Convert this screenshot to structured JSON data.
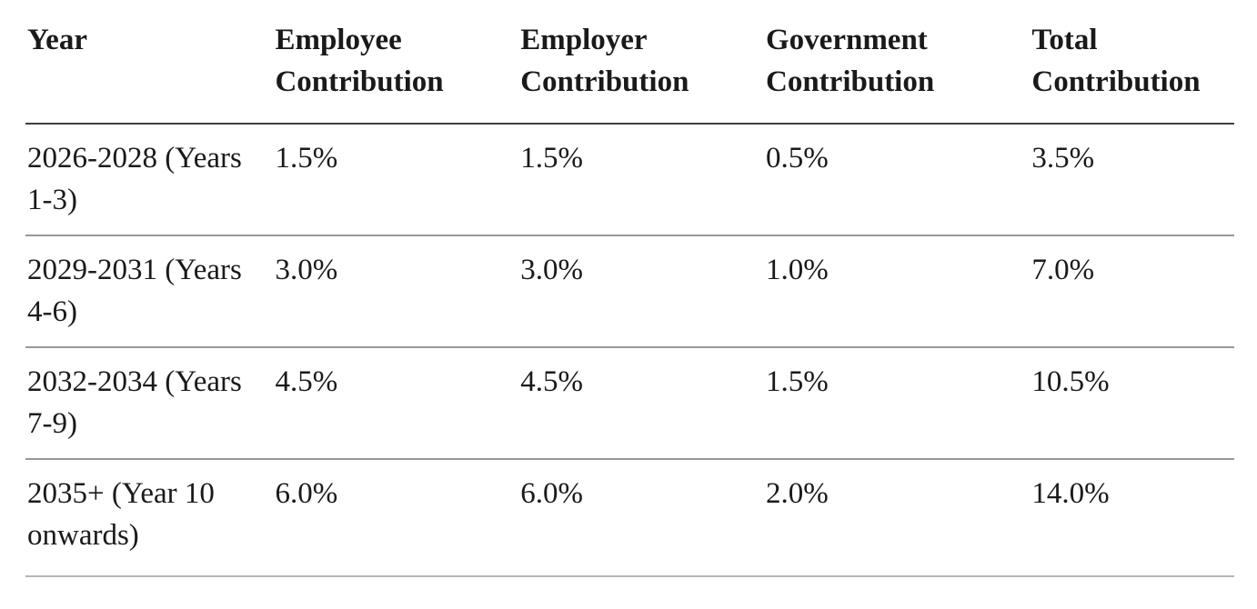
{
  "document": {
    "background_color": "#ffffff",
    "text_color": "#1a1a1a",
    "header_rule_color": "#3f3f3f",
    "row_rule_color": "#989898",
    "bottom_rule_color": "#b7b7b7"
  },
  "chart_data": {
    "type": "table",
    "columns": [
      "Year",
      "Employee Contribution",
      "Employer Contribution",
      "Government Contribution",
      "Total Contribution"
    ],
    "rows": [
      [
        "2026-2028 (Years 1-3)",
        "1.5%",
        "1.5%",
        "0.5%",
        "3.5%"
      ],
      [
        "2029-2031 (Years 4-6)",
        "3.0%",
        "3.0%",
        "1.0%",
        "7.0%"
      ],
      [
        "2032-2034 (Years 7-9)",
        "4.5%",
        "4.5%",
        "1.5%",
        "10.5%"
      ],
      [
        "2035+ (Year 10 onwards)",
        "6.0%",
        "6.0%",
        "2.0%",
        "14.0%"
      ]
    ]
  }
}
